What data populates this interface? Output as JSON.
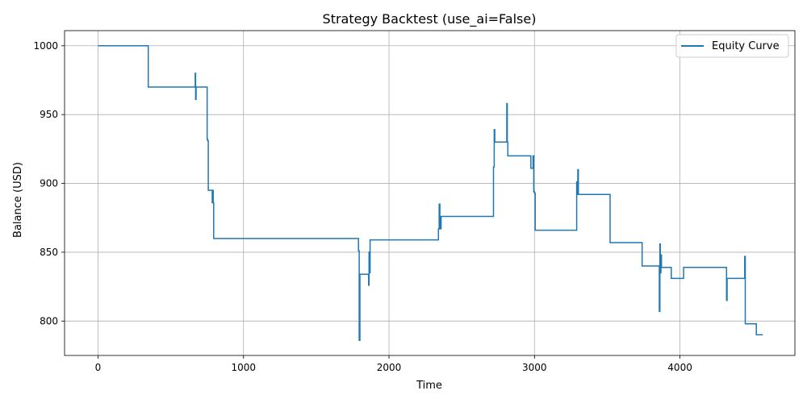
{
  "chart_data": {
    "type": "line",
    "title": "Strategy Backtest (use_ai=False)",
    "xlabel": "Time",
    "ylabel": "Balance (USD)",
    "xlim": [
      -230,
      4790
    ],
    "ylim": [
      775,
      1011
    ],
    "xticks": [
      0,
      1000,
      2000,
      3000,
      4000
    ],
    "yticks": [
      800,
      850,
      900,
      950,
      1000
    ],
    "grid": true,
    "legend_position": "top-right",
    "colors": {
      "series": "#1f77b4",
      "grid": "#b0b0b0"
    },
    "series": [
      {
        "name": "Equity Curve",
        "x": [
          0,
          345,
          345,
          668,
          668,
          671,
          671,
          674,
          674,
          750,
          750,
          754,
          754,
          758,
          758,
          762,
          762,
          785,
          785,
          788,
          788,
          792,
          792,
          795,
          795,
          800,
          800,
          1790,
          1790,
          1795,
          1795,
          1800,
          1800,
          1805,
          1805,
          1860,
          1860,
          1863,
          1863,
          1867,
          1867,
          1870,
          1870,
          1875,
          1875,
          2340,
          2340,
          2345,
          2345,
          2350,
          2350,
          2354,
          2354,
          2358,
          2358,
          2490,
          2490,
          2718,
          2718,
          2723,
          2723,
          2727,
          2727,
          2730,
          2730,
          2810,
          2810,
          2813,
          2813,
          2817,
          2817,
          2820,
          2820,
          2975,
          2975,
          2990,
          2990,
          2995,
          2995,
          3000,
          3000,
          3005,
          3005,
          3010,
          3010,
          3020,
          3020,
          3290,
          3290,
          3294,
          3294,
          3298,
          3298,
          3302,
          3302,
          3520,
          3520,
          3740,
          3740,
          3858,
          3858,
          3862,
          3862,
          3865,
          3865,
          3869,
          3869,
          3873,
          3873,
          3876,
          3876,
          3940,
          3940,
          4025,
          4025,
          4320,
          4320,
          4324,
          4324,
          4328,
          4328,
          4445,
          4445,
          4449,
          4449,
          4453,
          4453,
          4525,
          4525,
          4570
        ],
        "y": [
          1000,
          1000,
          970,
          970,
          980,
          980,
          961,
          961,
          970,
          970,
          932,
          932,
          931,
          931,
          895,
          895,
          895,
          895,
          886,
          886,
          895,
          895,
          886,
          886,
          860,
          860,
          860,
          860,
          851,
          851,
          786,
          786,
          834,
          834,
          834,
          834,
          826,
          826,
          850,
          850,
          835,
          835,
          859,
          859,
          859,
          859,
          867,
          867,
          885,
          885,
          867,
          867,
          867,
          867,
          876,
          876,
          876,
          876,
          912,
          912,
          939,
          939,
          930,
          930,
          930,
          930,
          958,
          958,
          930,
          930,
          920,
          920,
          920,
          920,
          911,
          911,
          920,
          920,
          894,
          894,
          893,
          893,
          866,
          866,
          866,
          866,
          866,
          866,
          901,
          901,
          892,
          892,
          910,
          910,
          892,
          892,
          857,
          857,
          840,
          840,
          807,
          807,
          856,
          856,
          835,
          835,
          848,
          848,
          839,
          839,
          839,
          839,
          831,
          831,
          839,
          839,
          815,
          815,
          831,
          831,
          831,
          831,
          847,
          847,
          798,
          798,
          798,
          798,
          790,
          790
        ]
      }
    ]
  }
}
